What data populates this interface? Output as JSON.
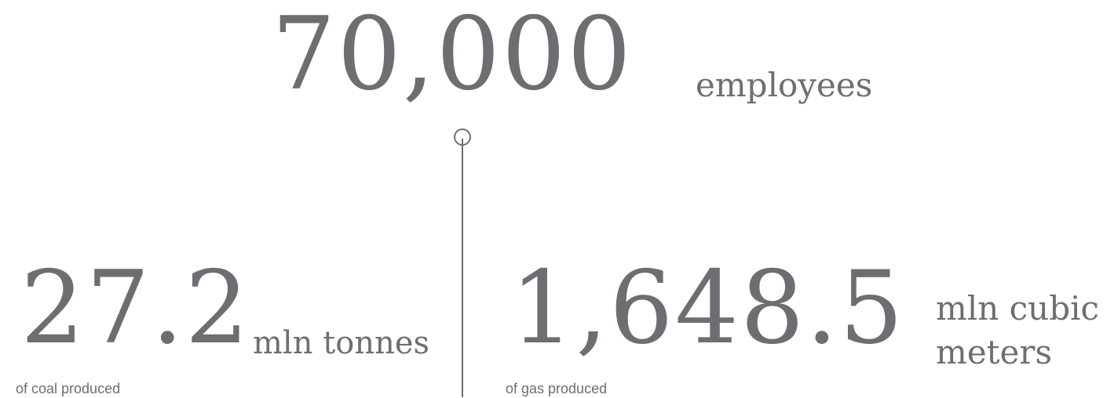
{
  "stats": {
    "employees": {
      "number": "70,000",
      "unit": "employees"
    },
    "coal": {
      "number": "27.2",
      "unit": "mln tonnes",
      "caption": "of coal produced"
    },
    "gas": {
      "number": "1,648.5",
      "unit": "mln cubic meters",
      "caption": "of gas produced"
    }
  },
  "colors": {
    "text": "#6d6e71",
    "line": "#6d6e71",
    "background": "#ffffff"
  }
}
